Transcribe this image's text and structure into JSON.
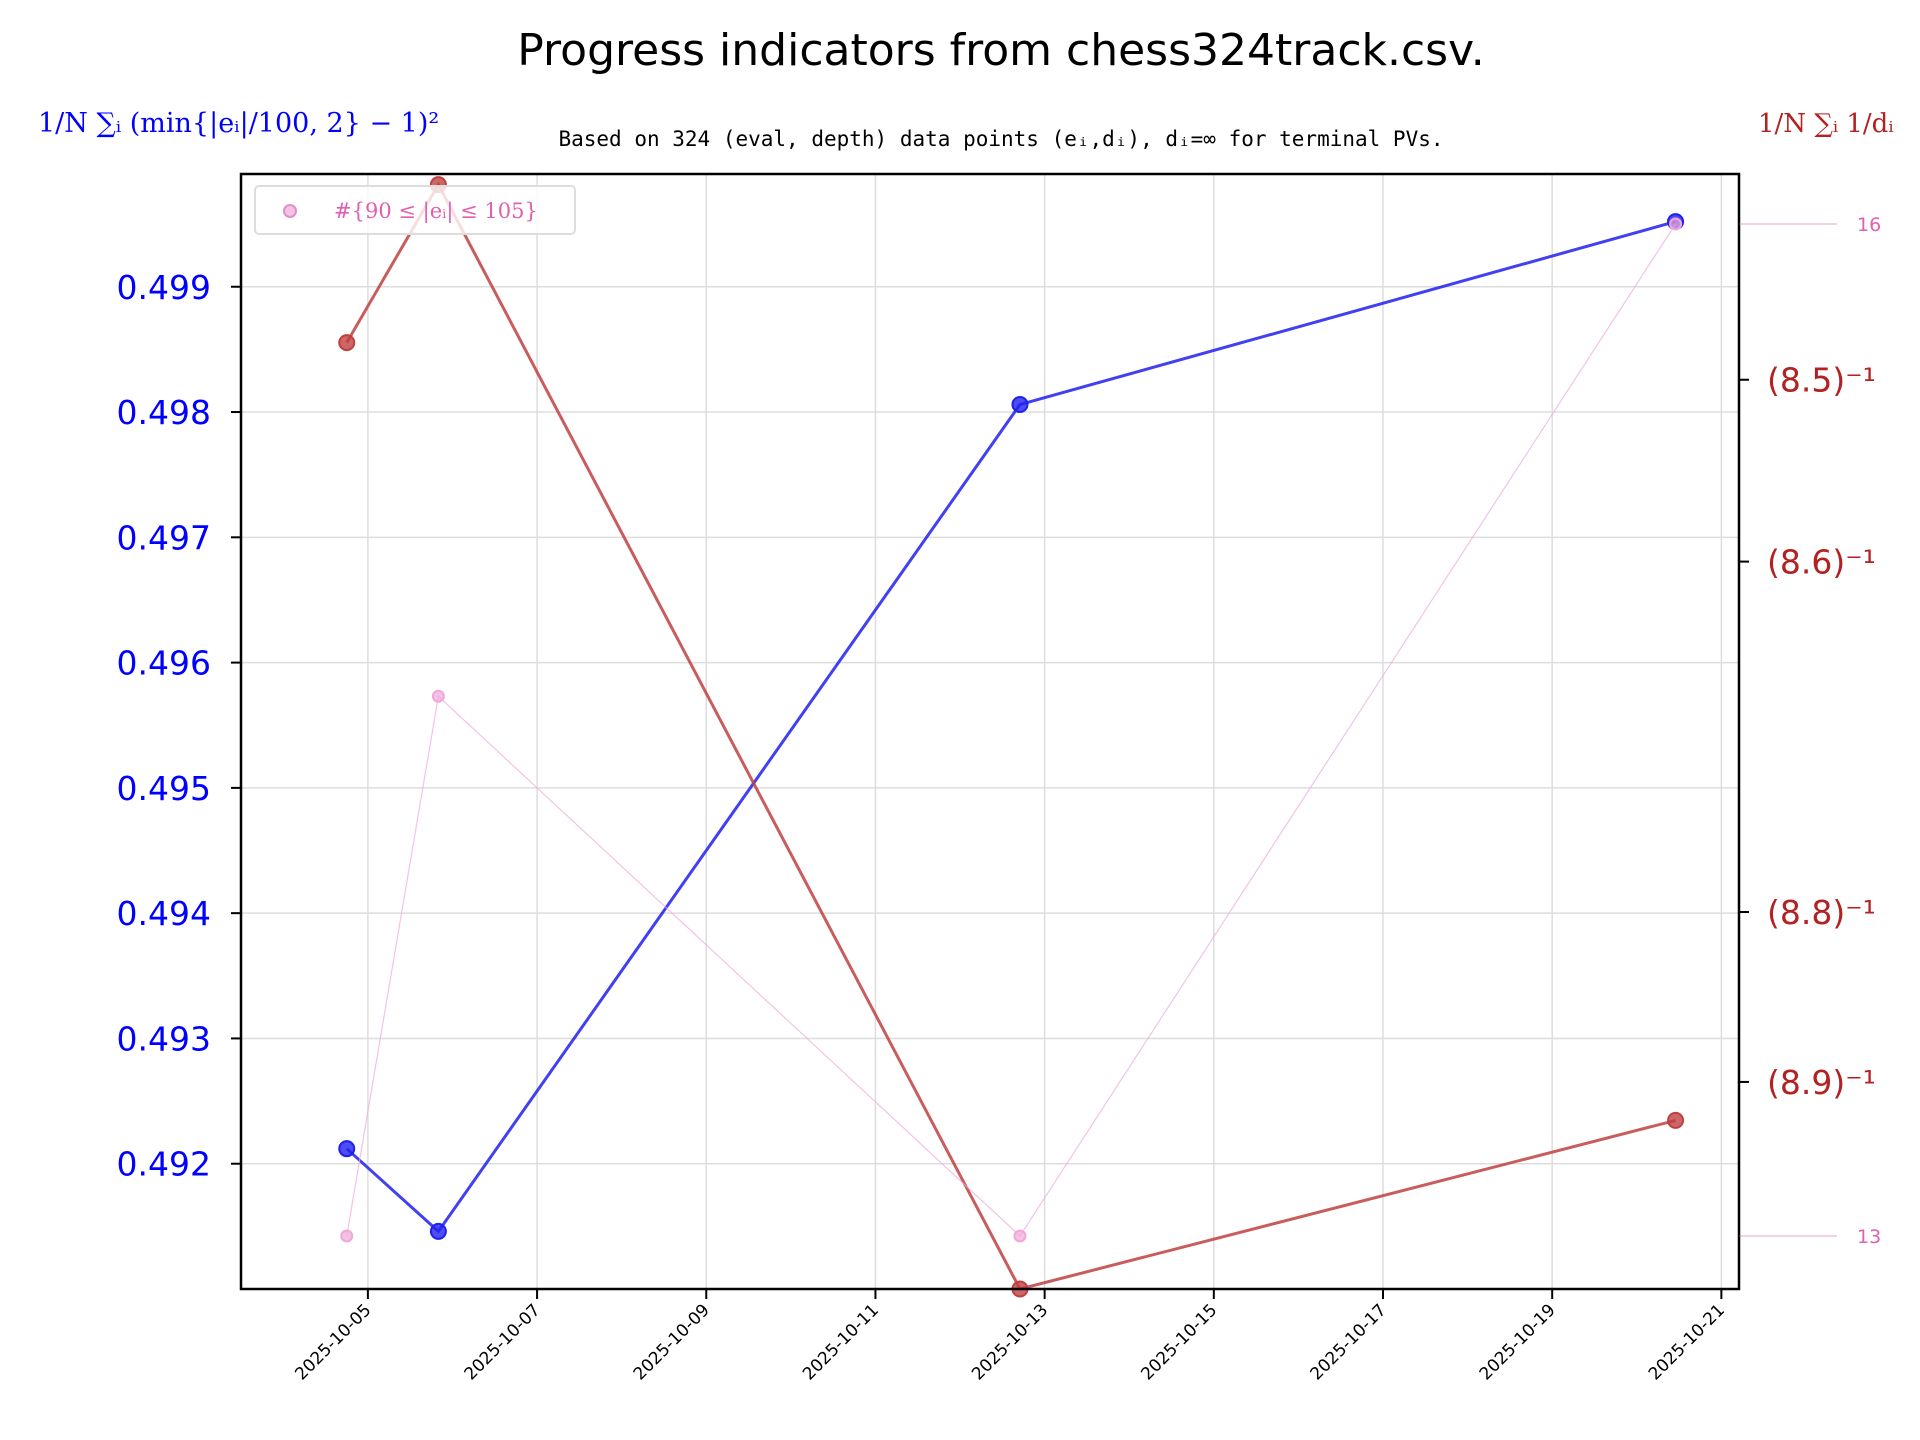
{
  "chart_data": {
    "type": "line",
    "title": "Progress indicators from chess324track.csv.",
    "subtitle": "Based on 324 (eval, depth) data points (eᵢ,dᵢ), dᵢ=∞ for terminal PVs.",
    "x": [
      "2025-10-04",
      "2025-10-05",
      "2025-10-12",
      "2025-10-20"
    ],
    "x_ticks": [
      "2025-10-05",
      "2025-10-07",
      "2025-10-09",
      "2025-10-11",
      "2025-10-13",
      "2025-10-15",
      "2025-10-17",
      "2025-10-19",
      "2025-10-21"
    ],
    "grid": true,
    "legend_placement": "top-left",
    "left_axis": {
      "label": "1/N ∑ᵢ (min{|eᵢ|/100, 2} − 1)²",
      "ticks": [
        "0.492",
        "0.493",
        "0.494",
        "0.495",
        "0.496",
        "0.497",
        "0.498",
        "0.499"
      ],
      "tick_values": [
        0.492,
        0.493,
        0.494,
        0.495,
        0.496,
        0.497,
        0.498,
        0.499
      ],
      "ylim": [
        0.491,
        0.4999
      ],
      "color": "#0000ff"
    },
    "right_axis": {
      "label": "1/N ∑ᵢ 1/dᵢ",
      "ticks": [
        "(8.5)⁻¹",
        "(8.6)⁻¹",
        "(8.8)⁻¹",
        "(8.9)⁻¹"
      ],
      "tick_values": [
        0.11765,
        0.11628,
        0.11364,
        0.11236
      ],
      "ylim": [
        0.1108,
        0.1192
      ],
      "color": "#b22222"
    },
    "count_axis": {
      "ticks": [
        "16",
        "13"
      ],
      "tick_values": [
        16,
        13
      ],
      "color": "#e060b0"
    },
    "series": [
      {
        "axis": "left",
        "color": "#2020ee",
        "values": [
          0.49212,
          0.49146,
          0.49806,
          0.49952
        ]
      },
      {
        "axis": "right",
        "color": "#c04040",
        "values": [
          0.11793,
          0.11912,
          0.1108,
          0.11207
        ]
      },
      {
        "axis": "count",
        "name": "#{90 ≤ |eᵢ| ≤ 105}",
        "color": "#f0a8d8",
        "values": [
          13,
          14.6,
          13,
          16
        ]
      }
    ]
  }
}
